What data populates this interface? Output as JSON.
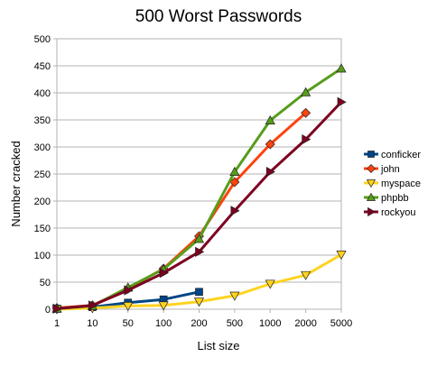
{
  "chart_data": {
    "type": "line",
    "title": "500 Worst Passwords",
    "xlabel": "List size",
    "ylabel": "Number cracked",
    "categories": [
      "1",
      "10",
      "50",
      "100",
      "200",
      "500",
      "1000",
      "2000",
      "5000"
    ],
    "ylim": [
      0,
      500
    ],
    "yticks": [
      "0",
      "50",
      "100",
      "150",
      "200",
      "250",
      "300",
      "350",
      "400",
      "450",
      "500"
    ],
    "grid": true,
    "legend_position": "right",
    "series": [
      {
        "name": "conficker",
        "color": "#004586",
        "marker": "square",
        "values": [
          1,
          4,
          12,
          18,
          32,
          null,
          null,
          null,
          null
        ]
      },
      {
        "name": "john",
        "color": "#ff420e",
        "marker": "diamond",
        "values": [
          2,
          7,
          38,
          75,
          135,
          235,
          305,
          363,
          null
        ]
      },
      {
        "name": "myspace",
        "color": "#ffd320",
        "marker": "triangle-down",
        "values": [
          0,
          2,
          6,
          7,
          14,
          25,
          47,
          63,
          101
        ]
      },
      {
        "name": "phpbb",
        "color": "#579d1c",
        "marker": "triangle-up",
        "values": [
          1,
          6,
          40,
          74,
          130,
          254,
          349,
          401,
          445
        ]
      },
      {
        "name": "rockyou",
        "color": "#7e0021",
        "marker": "triangle-right",
        "values": [
          1,
          7,
          35,
          67,
          106,
          182,
          254,
          314,
          383
        ]
      }
    ]
  }
}
